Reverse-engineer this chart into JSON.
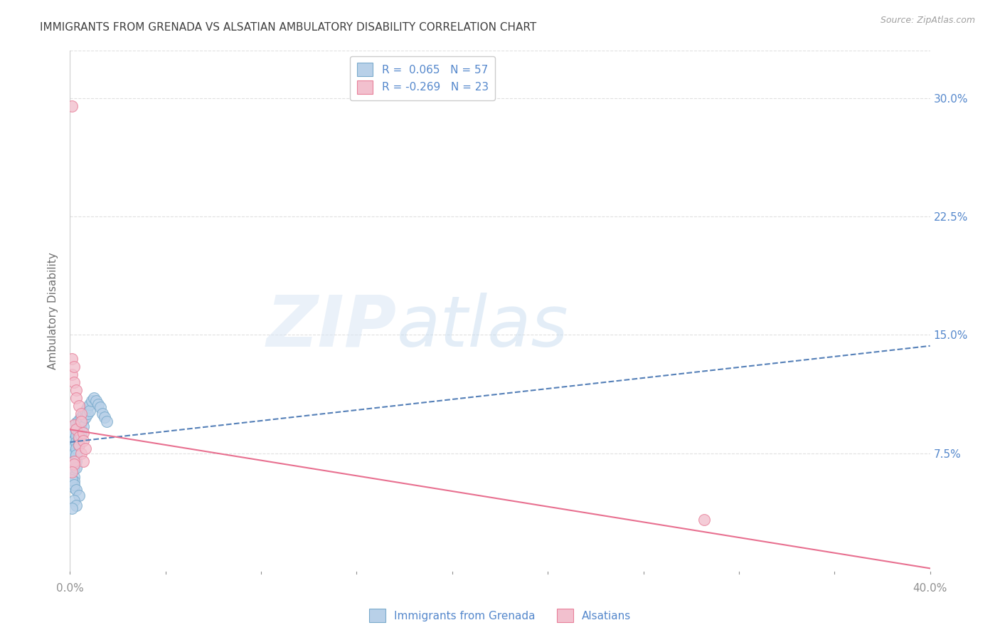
{
  "title": "IMMIGRANTS FROM GRENADA VS ALSATIAN AMBULATORY DISABILITY CORRELATION CHART",
  "source": "Source: ZipAtlas.com",
  "ylabel": "Ambulatory Disability",
  "xlim": [
    0.0,
    0.4
  ],
  "ylim": [
    0.0,
    0.33
  ],
  "yticks": [
    0.075,
    0.15,
    0.225,
    0.3
  ],
  "ytick_labels": [
    "7.5%",
    "15.0%",
    "22.5%",
    "30.0%"
  ],
  "xtick_left_label": "0.0%",
  "xtick_right_label": "40.0%",
  "blue_R": 0.065,
  "blue_N": 57,
  "pink_R": -0.269,
  "pink_N": 23,
  "blue_color": "#b8d0e8",
  "blue_edge_color": "#7aabcc",
  "pink_color": "#f2c0ce",
  "pink_edge_color": "#e8809a",
  "blue_line_color": "#5580b8",
  "pink_line_color": "#e87090",
  "legend_label_blue": "Immigrants from Grenada",
  "legend_label_pink": "Alsatians",
  "background_color": "#ffffff",
  "title_color": "#404040",
  "axis_label_color": "#707070",
  "tick_color": "#909090",
  "grid_color": "#e0e0e0",
  "blue_scatter_x": [
    0.001,
    0.001,
    0.001,
    0.001,
    0.001,
    0.001,
    0.002,
    0.002,
    0.002,
    0.002,
    0.002,
    0.002,
    0.002,
    0.002,
    0.002,
    0.002,
    0.003,
    0.003,
    0.003,
    0.003,
    0.003,
    0.003,
    0.003,
    0.003,
    0.004,
    0.004,
    0.004,
    0.004,
    0.004,
    0.005,
    0.005,
    0.005,
    0.005,
    0.006,
    0.006,
    0.006,
    0.007,
    0.007,
    0.008,
    0.008,
    0.009,
    0.009,
    0.01,
    0.011,
    0.012,
    0.013,
    0.014,
    0.015,
    0.016,
    0.017,
    0.001,
    0.002,
    0.003,
    0.004,
    0.002,
    0.003,
    0.001
  ],
  "blue_scatter_y": [
    0.09,
    0.085,
    0.078,
    0.073,
    0.068,
    0.063,
    0.092,
    0.088,
    0.083,
    0.079,
    0.075,
    0.07,
    0.065,
    0.06,
    0.057,
    0.053,
    0.094,
    0.09,
    0.086,
    0.082,
    0.078,
    0.074,
    0.07,
    0.066,
    0.096,
    0.092,
    0.088,
    0.084,
    0.08,
    0.098,
    0.094,
    0.09,
    0.086,
    0.1,
    0.096,
    0.092,
    0.102,
    0.098,
    0.104,
    0.1,
    0.106,
    0.102,
    0.108,
    0.11,
    0.108,
    0.106,
    0.104,
    0.1,
    0.098,
    0.095,
    0.058,
    0.055,
    0.052,
    0.048,
    0.045,
    0.042,
    0.04
  ],
  "pink_scatter_x": [
    0.001,
    0.001,
    0.001,
    0.002,
    0.002,
    0.002,
    0.003,
    0.003,
    0.003,
    0.004,
    0.004,
    0.004,
    0.005,
    0.005,
    0.005,
    0.006,
    0.006,
    0.006,
    0.007,
    0.002,
    0.295,
    0.002,
    0.001
  ],
  "pink_scatter_y": [
    0.295,
    0.135,
    0.125,
    0.13,
    0.12,
    0.093,
    0.115,
    0.11,
    0.09,
    0.105,
    0.085,
    0.08,
    0.1,
    0.095,
    0.075,
    0.088,
    0.083,
    0.07,
    0.078,
    0.07,
    0.033,
    0.068,
    0.063
  ],
  "blue_trend_x": [
    0.0,
    0.4
  ],
  "blue_trend_y": [
    0.082,
    0.143
  ],
  "pink_trend_x": [
    0.0,
    0.4
  ],
  "pink_trend_y": [
    0.09,
    0.002
  ]
}
